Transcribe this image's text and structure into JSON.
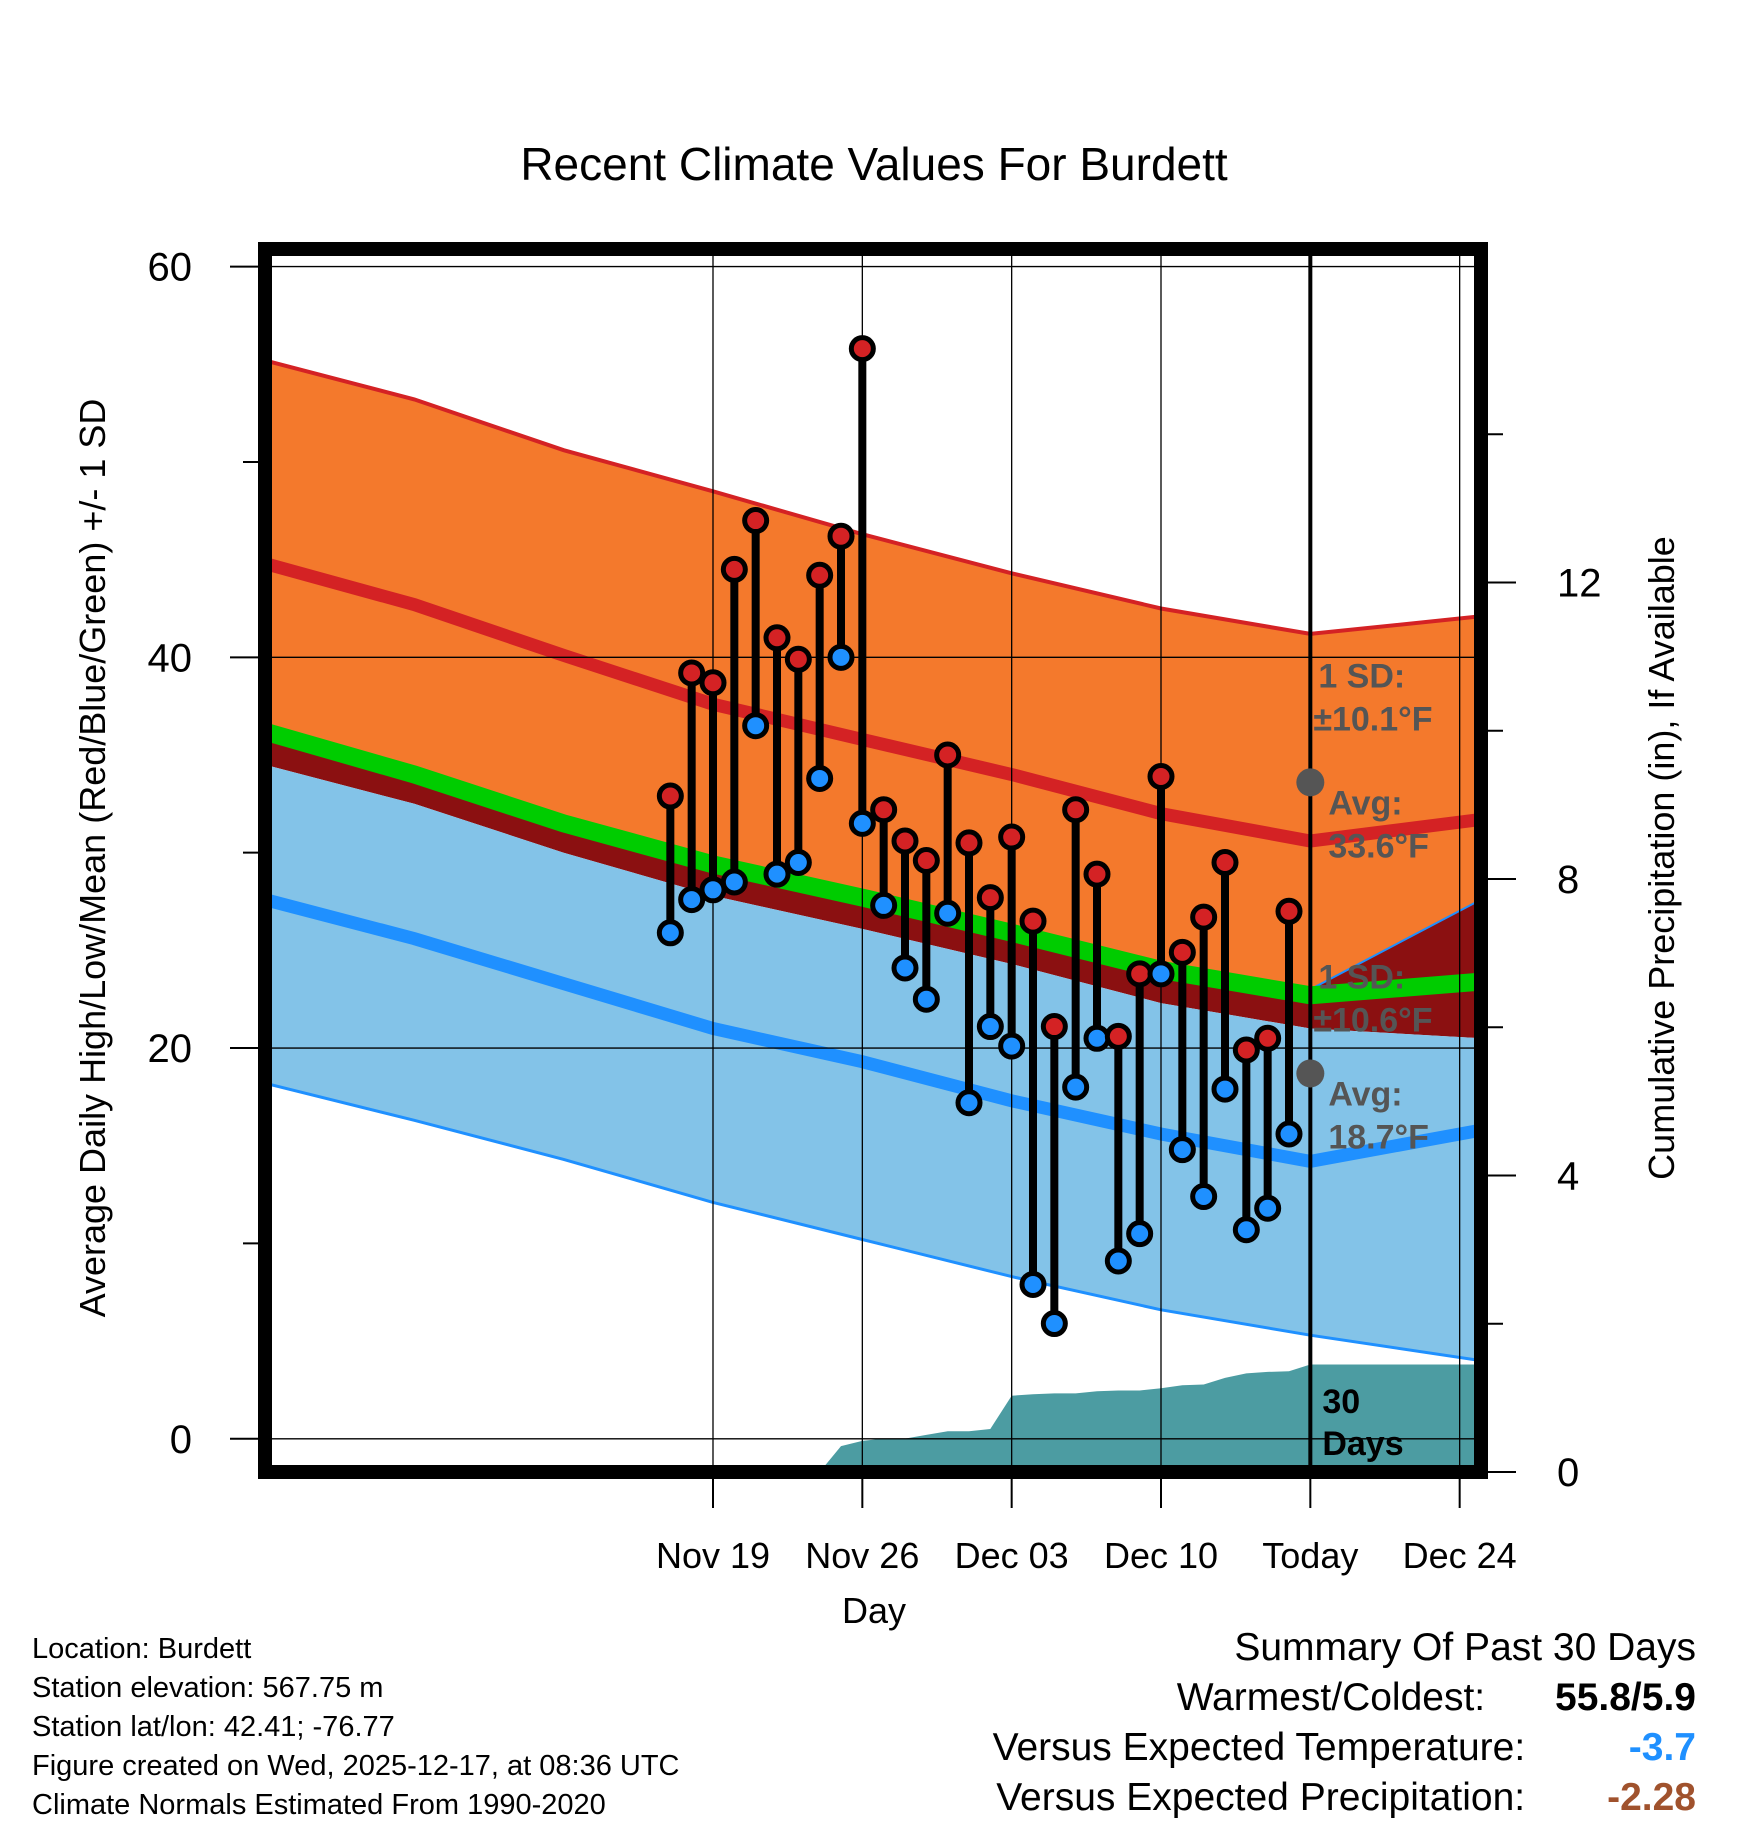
{
  "chart_data": {
    "type": "line",
    "title": "Recent Climate Values For Burdett",
    "xlabel": "Day",
    "ylabel": "Average Daily High/Low/Mean (Red/Blue/Green) +/- 1 SD",
    "y2label": "Cumulative Precipitation (in), If Available",
    "xlim": [
      -3.0,
      54.0
    ],
    "ylim": [
      -1.7,
      60.9
    ],
    "y2lim": [
      0,
      16.5
    ],
    "y_ticks": [
      "0",
      "20",
      "40",
      "60"
    ],
    "y2_ticks": [
      "0",
      "4",
      "8",
      "12"
    ],
    "x_ticks": [
      {
        "day": 18,
        "label": "Nov 19"
      },
      {
        "day": 25,
        "label": "Nov 26"
      },
      {
        "day": 32,
        "label": "Dec 03"
      },
      {
        "day": 39,
        "label": "Dec 10"
      },
      {
        "day": 46,
        "label": "Today"
      },
      {
        "day": 53,
        "label": "Dec 24"
      }
    ],
    "normals": {
      "x": [
        -3,
        4,
        11,
        18,
        25,
        32,
        39,
        46,
        54
      ],
      "high_mean": [
        44.8,
        42.7,
        40.1,
        37.6,
        35.8,
        34.0,
        32.0,
        30.6,
        31.7
      ],
      "high_upper": [
        55.2,
        53.2,
        50.6,
        48.5,
        46.3,
        44.3,
        42.5,
        41.2,
        42.1
      ],
      "high_lower": [
        34.5,
        32.5,
        30.0,
        27.8,
        26.1,
        24.3,
        22.3,
        21.0,
        20.5
      ],
      "mean_line": [
        36.2,
        34.0,
        31.5,
        29.4,
        27.7,
        25.9,
        24.0,
        22.7,
        23.4
      ],
      "low_mean": [
        27.6,
        25.6,
        23.3,
        21.0,
        19.3,
        17.3,
        15.6,
        14.2,
        15.8
      ],
      "low_upper": [
        35.8,
        34.0,
        31.6,
        29.8,
        28.0,
        26.0,
        24.3,
        23.0,
        27.6
      ],
      "low_lower": [
        18.2,
        16.3,
        14.3,
        12.1,
        10.2,
        8.3,
        6.6,
        5.3,
        4.0
      ]
    },
    "days": [
      16,
      17,
      18,
      19,
      20,
      21,
      22,
      23,
      24,
      25,
      26,
      27,
      28,
      29,
      30,
      31,
      32,
      33,
      34,
      35,
      36,
      37,
      38,
      39,
      40,
      41,
      42,
      43,
      44,
      45
    ],
    "series": [
      {
        "name": "High",
        "values": [
          32.9,
          39.2,
          38.7,
          44.5,
          47.0,
          41.0,
          39.9,
          44.2,
          46.2,
          55.8,
          32.2,
          30.6,
          29.6,
          35.0,
          30.5,
          27.7,
          30.8,
          26.5,
          21.1,
          32.2,
          28.9,
          20.6,
          23.8,
          33.9,
          24.9,
          26.7,
          29.5,
          19.9,
          20.5,
          27.0
        ]
      },
      {
        "name": "Low",
        "values": [
          25.9,
          27.6,
          28.1,
          28.5,
          36.5,
          28.9,
          29.5,
          33.8,
          40.0,
          31.5,
          27.3,
          24.1,
          22.5,
          26.9,
          17.2,
          21.1,
          20.1,
          7.9,
          5.9,
          18.0,
          20.5,
          9.1,
          10.5,
          23.8,
          14.8,
          12.4,
          17.9,
          10.7,
          11.8,
          15.6
        ]
      }
    ],
    "precipitation": {
      "x": [
        -3,
        5,
        6,
        7,
        8,
        9,
        10,
        11,
        12,
        13,
        14,
        15,
        16,
        17,
        18,
        19,
        20,
        21,
        22,
        23,
        24,
        25,
        26,
        27,
        28,
        29,
        30,
        31,
        32,
        33,
        34,
        35,
        36,
        37,
        38,
        39,
        40,
        41,
        42,
        43,
        44,
        45,
        46,
        54
      ],
      "y": [
        0,
        0,
        0,
        0,
        0,
        0,
        0,
        0,
        0,
        0,
        0,
        0,
        0,
        0,
        0,
        0,
        0,
        0,
        0,
        0,
        0.35,
        0.42,
        0.45,
        0.45,
        0.5,
        0.55,
        0.55,
        0.58,
        1.03,
        1.05,
        1.06,
        1.06,
        1.09,
        1.1,
        1.1,
        1.13,
        1.17,
        1.18,
        1.27,
        1.33,
        1.35,
        1.36,
        1.45,
        1.45
      ]
    },
    "high_normal_annotation": {
      "sd_label": "1 SD:",
      "sd_value": "±10.1°F",
      "avg_label": "Avg:",
      "avg_value": "33.6°F",
      "value": 33.6
    },
    "low_normal_annotation": {
      "sd_label": "1 SD:",
      "sd_value": "±10.6°F",
      "avg_label": "Avg:",
      "avg_value": "18.7°F",
      "value": 18.7
    },
    "today_annotation": {
      "line1": "30",
      "line2": "Days"
    }
  },
  "station_info": [
    "Location: Burdett",
    "Station elevation: 567.75 m",
    "Station lat/lon: 42.41; -76.77",
    "Figure created on Wed, 2025-12-17, at 08:36 UTC",
    "Climate Normals Estimated From 1990-2020"
  ],
  "summary": {
    "title": "Summary Of Past 30 Days",
    "warmest_coldest_label": "Warmest/Coldest:",
    "warmest_coldest_value": "55.8/5.9",
    "temp_label": "Versus Expected Temperature:",
    "temp_value": "-3.7",
    "temp_color": "#1f90ff",
    "precip_label": "Versus Expected Precipitation:",
    "precip_value": "-2.28",
    "precip_color": "#a0522d"
  },
  "colors": {
    "high_band": "#f4792c",
    "overlap_band": "#8b1011",
    "low_band": "#83c3e8",
    "high_line": "#d42224",
    "low_line": "#1f90ff",
    "mean_line": "#00cc00",
    "precip": "#4c9ca2",
    "annotation": "#555555"
  }
}
